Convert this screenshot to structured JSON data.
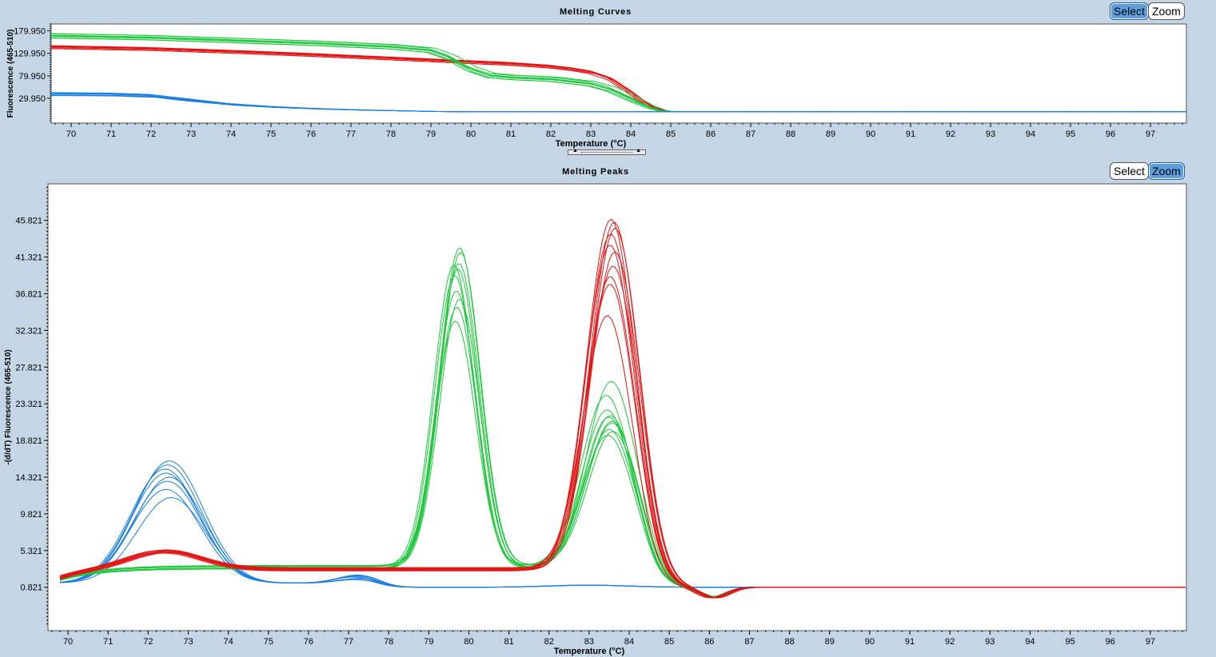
{
  "top_panel": {
    "title": "Melting Curves",
    "buttons": {
      "select": "Select",
      "zoom": "Zoom"
    },
    "active_button": "select"
  },
  "bottom_panel": {
    "title": "Melting Peaks",
    "buttons": {
      "select": "Select",
      "zoom": "Zoom"
    },
    "active_button": "zoom"
  },
  "colors": {
    "red": "#e31414",
    "green": "#1ec83c",
    "blue": "#1a7fe0"
  },
  "chart_data": [
    {
      "type": "line",
      "title": "Melting Curves",
      "xlabel": "Temperature (°C)",
      "ylabel": "Fluorescence (465-510)",
      "xlim": [
        69.5,
        97.9
      ],
      "ylim": [
        -25,
        195
      ],
      "xticks": [
        70,
        71,
        72,
        73,
        74,
        75,
        76,
        77,
        78,
        79,
        80,
        81,
        82,
        83,
        84,
        85,
        86,
        87,
        88,
        89,
        90,
        91,
        92,
        93,
        94,
        95,
        96,
        97
      ],
      "yticks": [
        29.95,
        79.95,
        129.95,
        179.95
      ],
      "ytick_labels": [
        "29.950",
        "79.950",
        "129.950",
        "179.950"
      ],
      "grid": false,
      "series": [
        {
          "color": "red",
          "count": 8,
          "x": [
            69.6,
            72,
            74,
            76,
            78,
            79,
            80,
            81,
            82,
            82.5,
            83,
            83.5,
            84,
            84.5,
            84.8,
            85,
            98
          ],
          "y": [
            145,
            141,
            135,
            128,
            120,
            116,
            112,
            108,
            102,
            97,
            90,
            75,
            45,
            12,
            3,
            0,
            0
          ]
        },
        {
          "color": "green",
          "count": 8,
          "x": [
            69.6,
            72,
            74,
            76,
            77,
            78,
            79,
            79.5,
            80,
            80.5,
            81,
            82,
            83,
            83.5,
            84,
            84.5,
            84.8,
            85,
            98
          ],
          "y": [
            168,
            164,
            158,
            152,
            148,
            144,
            136,
            120,
            95,
            80,
            76,
            72,
            62,
            50,
            30,
            10,
            2,
            0,
            0
          ]
        },
        {
          "color": "blue",
          "count": 6,
          "x": [
            69.6,
            71,
            72,
            73,
            74,
            75,
            76,
            77,
            78,
            79,
            80,
            85,
            98
          ],
          "y": [
            42,
            41,
            38,
            28,
            18,
            12,
            8,
            5,
            3,
            1,
            0,
            0,
            0
          ]
        }
      ]
    },
    {
      "type": "line",
      "title": "Melting Peaks",
      "xlabel": "Temperature (°C)",
      "ylabel": "-(d/dT) Fluorescence (465-510)",
      "xlim": [
        69.5,
        97.9
      ],
      "ylim": [
        -4.5,
        50.3
      ],
      "xticks": [
        70,
        71,
        72,
        73,
        74,
        75,
        76,
        77,
        78,
        79,
        80,
        81,
        82,
        83,
        84,
        85,
        86,
        87,
        88,
        89,
        90,
        91,
        92,
        93,
        94,
        95,
        96,
        97
      ],
      "yticks": [
        0.821,
        5.321,
        9.821,
        14.321,
        18.821,
        23.321,
        27.821,
        32.321,
        36.821,
        41.321,
        45.821
      ],
      "ytick_labels": [
        "0.821",
        "5.321",
        "9.821",
        "14.321",
        "18.821",
        "23.321",
        "27.821",
        "32.321",
        "36.821",
        "41.321",
        "45.821"
      ],
      "grid": false,
      "series": [
        {
          "color": "red",
          "count": 10,
          "peak": [
            33.5,
            37.5,
            38.5,
            39.5,
            41.5,
            42.5,
            43.5,
            44.5,
            45,
            45.3
          ]
        },
        {
          "color": "green",
          "count": 10,
          "peak1": [
            32.5,
            34.5,
            35.5,
            36.5,
            38.5,
            39.5,
            40,
            41,
            41.5,
            39
          ],
          "peak2": [
            18.5,
            19.5,
            20.5,
            21,
            22,
            23.5,
            25.5,
            19,
            20,
            21
          ]
        },
        {
          "color": "blue",
          "count": 8,
          "peak": [
            11,
            12,
            13,
            13.5,
            14,
            14.5,
            15,
            15.5
          ]
        }
      ],
      "baseline": 0.821
    }
  ]
}
